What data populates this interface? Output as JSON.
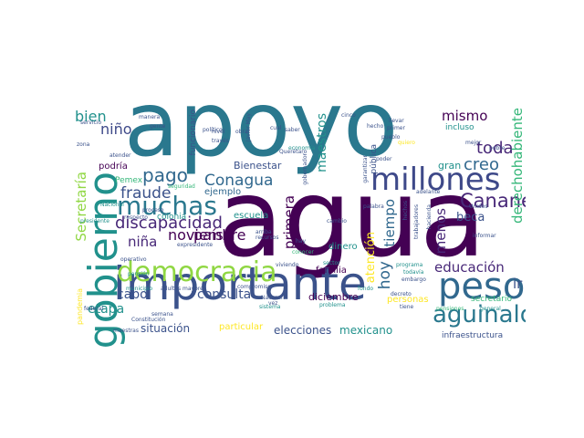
{
  "palette": {
    "dark_purple": "#440154",
    "indigo": "#3b528b",
    "blue": "#31688e",
    "teal": "#21918c",
    "green": "#35b779",
    "lime": "#90d743",
    "yellow": "#fde725"
  },
  "words": {
    "apoyo": "apoyo",
    "agua": "agua",
    "importante": "importante",
    "gobierno": "gobierno",
    "democracia": "democracia",
    "peso": "peso",
    "millones": "millones",
    "muchas": "muchas",
    "aguinaldo": "aguinaldo",
    "pago": "pago",
    "conagua": "Conagua",
    "cananea": "Cananea",
    "discapacidad": "discapacidad",
    "fraude": "fraude",
    "toda": "toda",
    "creo": "creo",
    "mismo": "mismo",
    "bien": "bien",
    "nino": "niño",
    "derechohabiente": "derechohabiente",
    "secretaria": "Secretaría",
    "noviembre": "noviembre",
    "pais": "país",
    "nina": "niña",
    "etapa": "etapa",
    "cabo": "cabo",
    "consulta": "consulta",
    "educacion": "educación",
    "hoy": "hoy",
    "primera": "primera",
    "menos": "menos",
    "beca": "beca",
    "tiempo": "tiempo",
    "maestros": "maestros",
    "ir": "ir",
    "atencion": "atención",
    "situacion": "situación",
    "elecciones": "elecciones",
    "mexicano": "mexicano",
    "diciembre": "diciembre",
    "bienestar": "Bienestar",
    "escuela": "escuela",
    "familia": "familia",
    "dinero": "dinero",
    "gran": "gran",
    "podria": "podría",
    "ejemplo": "ejemplo",
    "colonia": "colonia",
    "pemex": "Pemex",
    "funcionario": "funcionario",
    "pandemia": "pandemia",
    "particular": "particular",
    "personas": "personas",
    "secretario": "secretario",
    "infraestructura": "infraestructura",
    "publica": "pública",
    "incluso": "incluso",
    "nacional": "Nacional",
    "unidos": "Unidos",
    "seguridad": "seguridad",
    "proceso": "proceso",
    "presidente": "presidente",
    "expresidente": "expresidente",
    "general": "general",
    "pensiones": "pensiones",
    "programa": "programa",
    "informar": "informar",
    "decreto": "decreto",
    "todavia": "todavía",
    "sector": "sector",
    "problema": "problema",
    "conocer": "conocer",
    "sistema": "sistema",
    "cambio": "cambio",
    "palabra": "palabra",
    "viviendo": "viviendo",
    "fondo": "fondo",
    "adelante": "adelante",
    "federal": "federal",
    "pension": "pensión",
    "semana": "semana",
    "constitucion": "Constitución",
    "municipio": "municipio",
    "adultos_mayores": "adultos mayores",
    "compromiso": "compromiso",
    "operativo": "operativo",
    "respecto": "respecto",
    "maestras": "maestras",
    "hechos": "hechos",
    "hacienda": "hacienda",
    "trabajadores": "trabajadores",
    "embargo": "embargo",
    "tiene": "tiene",
    "mejor": "mejor",
    "poder": "poder",
    "hecho": "hecho",
    "llevar": "llevar",
    "primer": "primer",
    "cinco": "cinco",
    "saber": "saber",
    "cual": "cual",
    "javier_may": "Javier May",
    "nivel": "nivel",
    "traves": "través",
    "politico": "político",
    "manera": "manera",
    "servicio": "servicio",
    "gente": "gente",
    "zona": "zona",
    "atender": "atender",
    "economia": "economía",
    "queretaro": "Querétaro",
    "pobre": "pobre",
    "quiero": "quiero",
    "pueblo": "pueblo",
    "hay": "hay",
    "nacozari": "Nacozari",
    "recursos": "recursos",
    "arriba": "arriba",
    "garantizar": "garantizar",
    "gobernador": "gobernador",
    "vez": "vez",
    "obra": "obra"
  }
}
